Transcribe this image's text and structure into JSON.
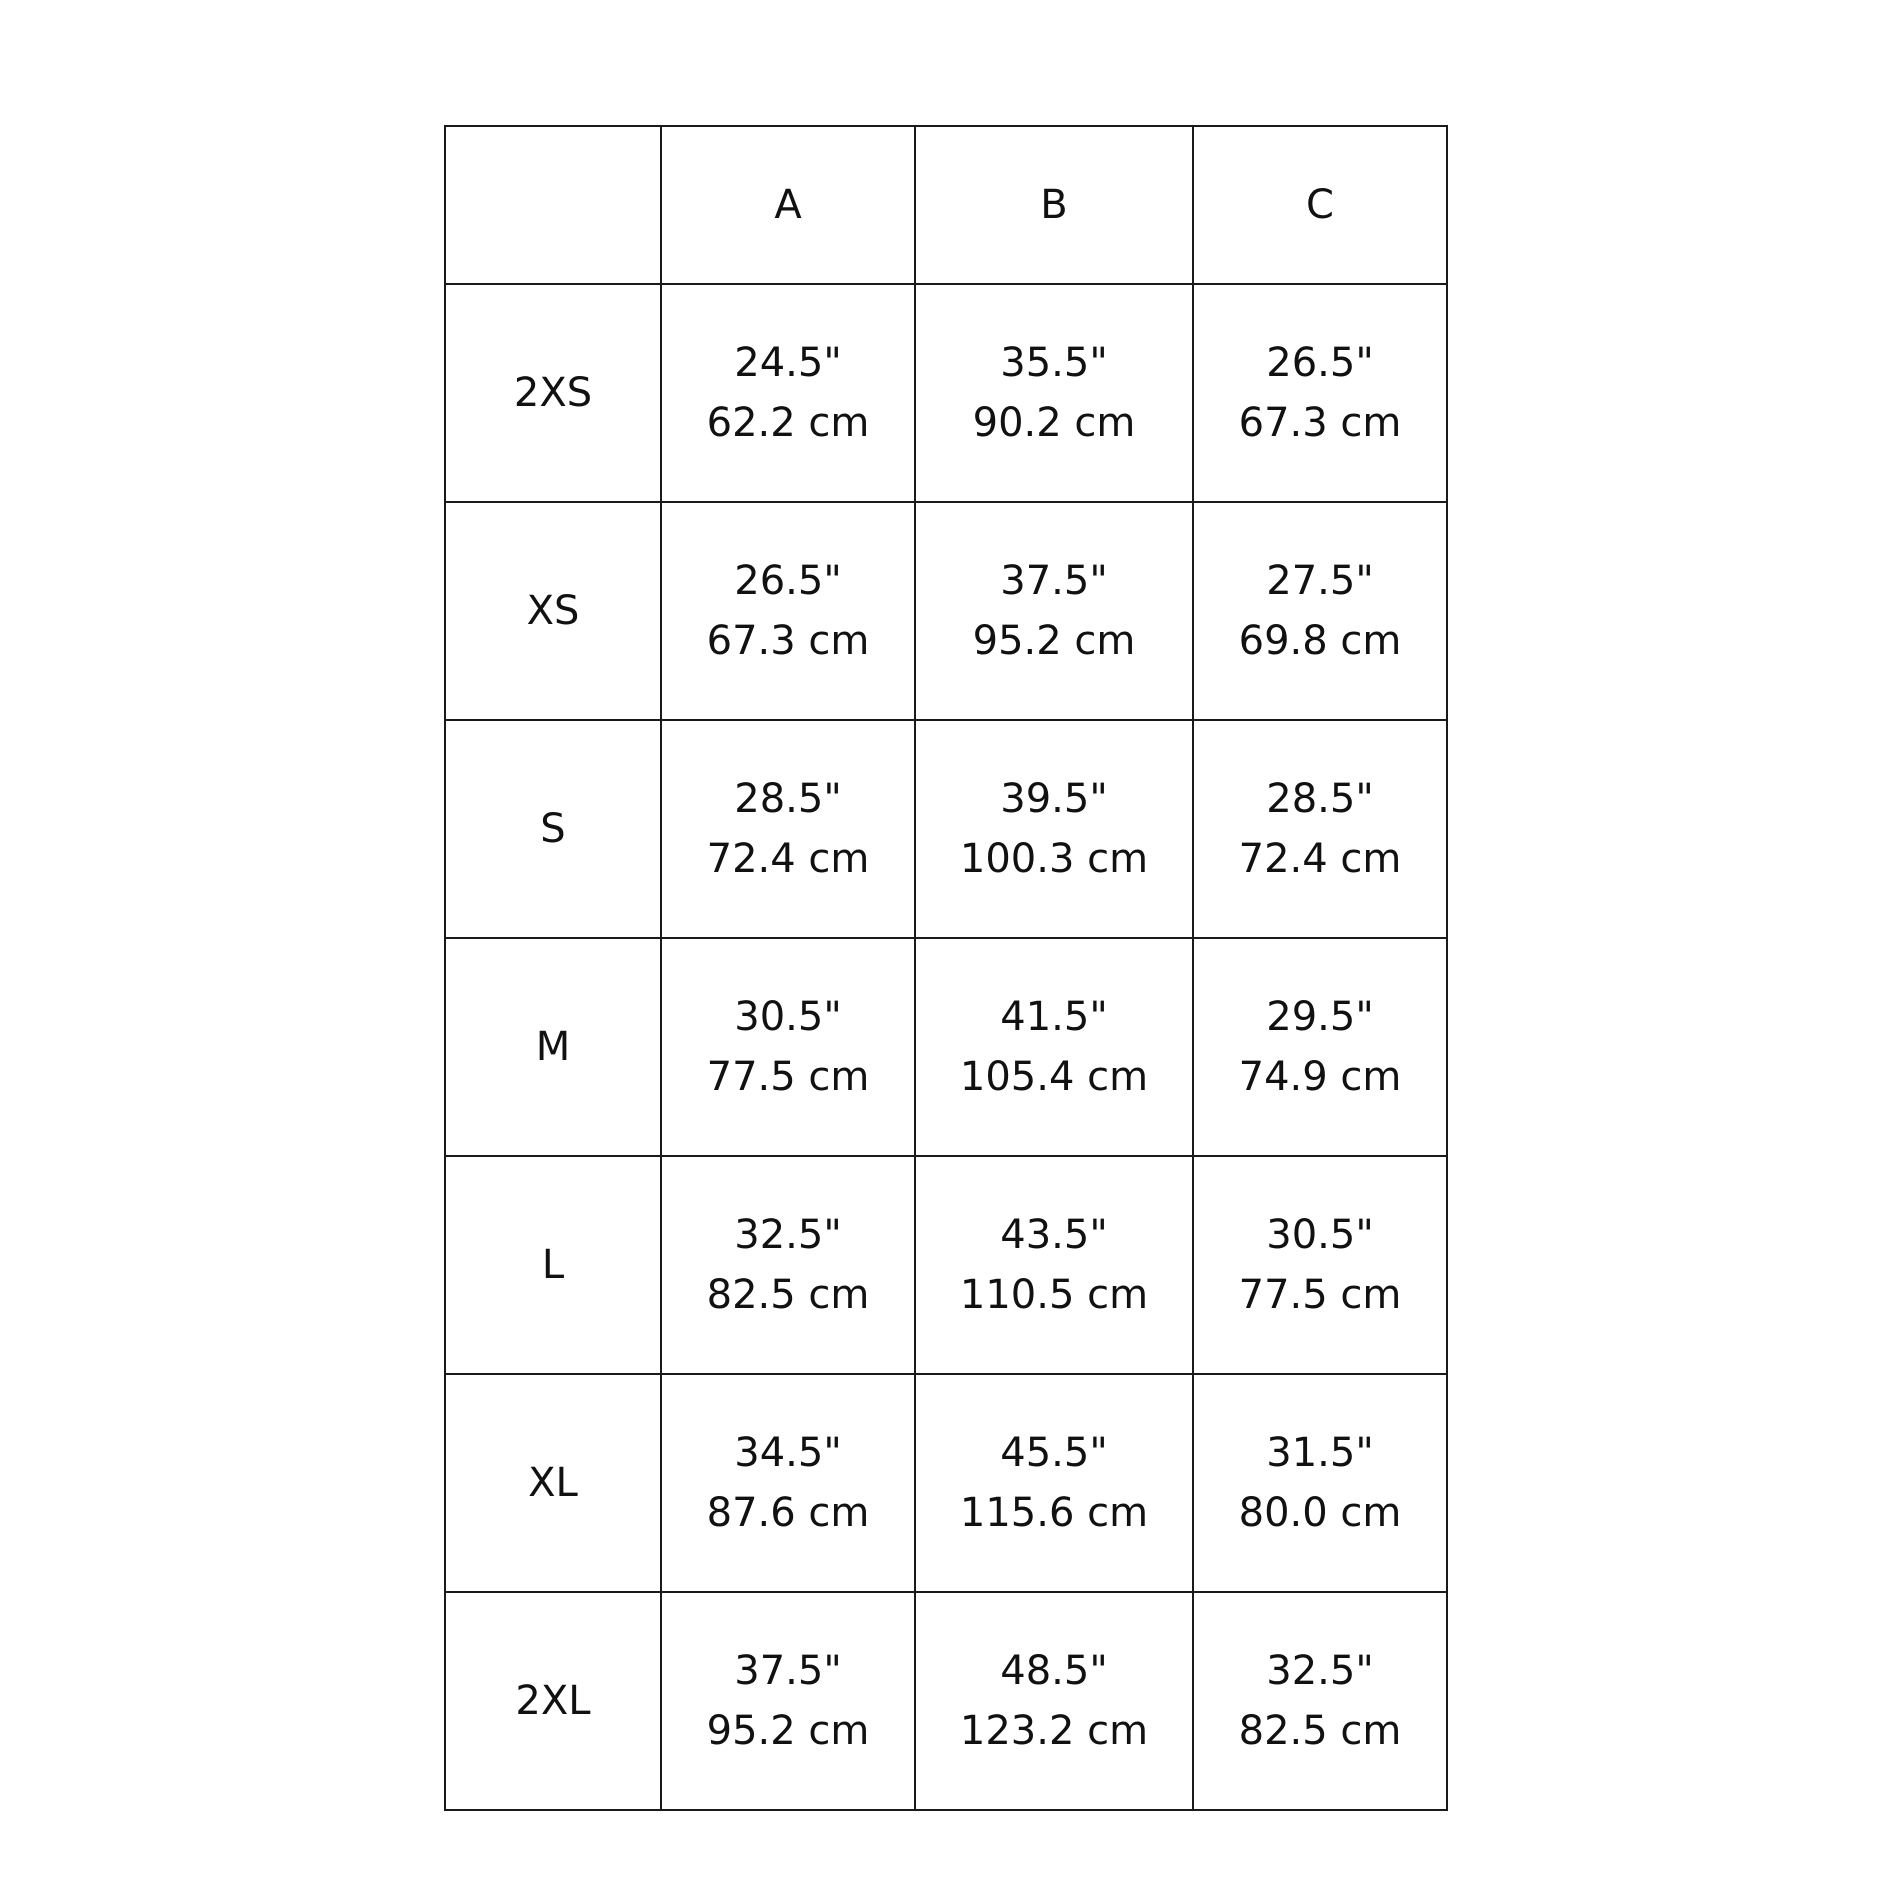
{
  "table": {
    "headers": [
      "",
      "A",
      "B",
      "C"
    ],
    "rows": [
      {
        "size": "2XS",
        "cells": [
          {
            "in": "24.5\"",
            "cm": "62.2 cm"
          },
          {
            "in": "35.5\"",
            "cm": "90.2 cm"
          },
          {
            "in": "26.5\"",
            "cm": "67.3 cm"
          }
        ]
      },
      {
        "size": "XS",
        "cells": [
          {
            "in": "26.5\"",
            "cm": "67.3 cm"
          },
          {
            "in": "37.5\"",
            "cm": "95.2 cm"
          },
          {
            "in": "27.5\"",
            "cm": "69.8 cm"
          }
        ]
      },
      {
        "size": "S",
        "cells": [
          {
            "in": "28.5\"",
            "cm": "72.4 cm"
          },
          {
            "in": "39.5\"",
            "cm": "100.3 cm"
          },
          {
            "in": "28.5\"",
            "cm": "72.4 cm"
          }
        ]
      },
      {
        "size": "M",
        "cells": [
          {
            "in": "30.5\"",
            "cm": "77.5 cm"
          },
          {
            "in": "41.5\"",
            "cm": "105.4 cm"
          },
          {
            "in": "29.5\"",
            "cm": "74.9 cm"
          }
        ]
      },
      {
        "size": "L",
        "cells": [
          {
            "in": "32.5\"",
            "cm": "82.5 cm"
          },
          {
            "in": "43.5\"",
            "cm": "110.5 cm"
          },
          {
            "in": "30.5\"",
            "cm": "77.5 cm"
          }
        ]
      },
      {
        "size": "XL",
        "cells": [
          {
            "in": "34.5\"",
            "cm": "87.6 cm"
          },
          {
            "in": "45.5\"",
            "cm": "115.6 cm"
          },
          {
            "in": "31.5\"",
            "cm": "80.0 cm"
          }
        ]
      },
      {
        "size": "2XL",
        "cells": [
          {
            "in": "37.5\"",
            "cm": "95.2 cm"
          },
          {
            "in": "48.5\"",
            "cm": "123.2 cm"
          },
          {
            "in": "32.5\"",
            "cm": "82.5 cm"
          }
        ]
      }
    ]
  }
}
